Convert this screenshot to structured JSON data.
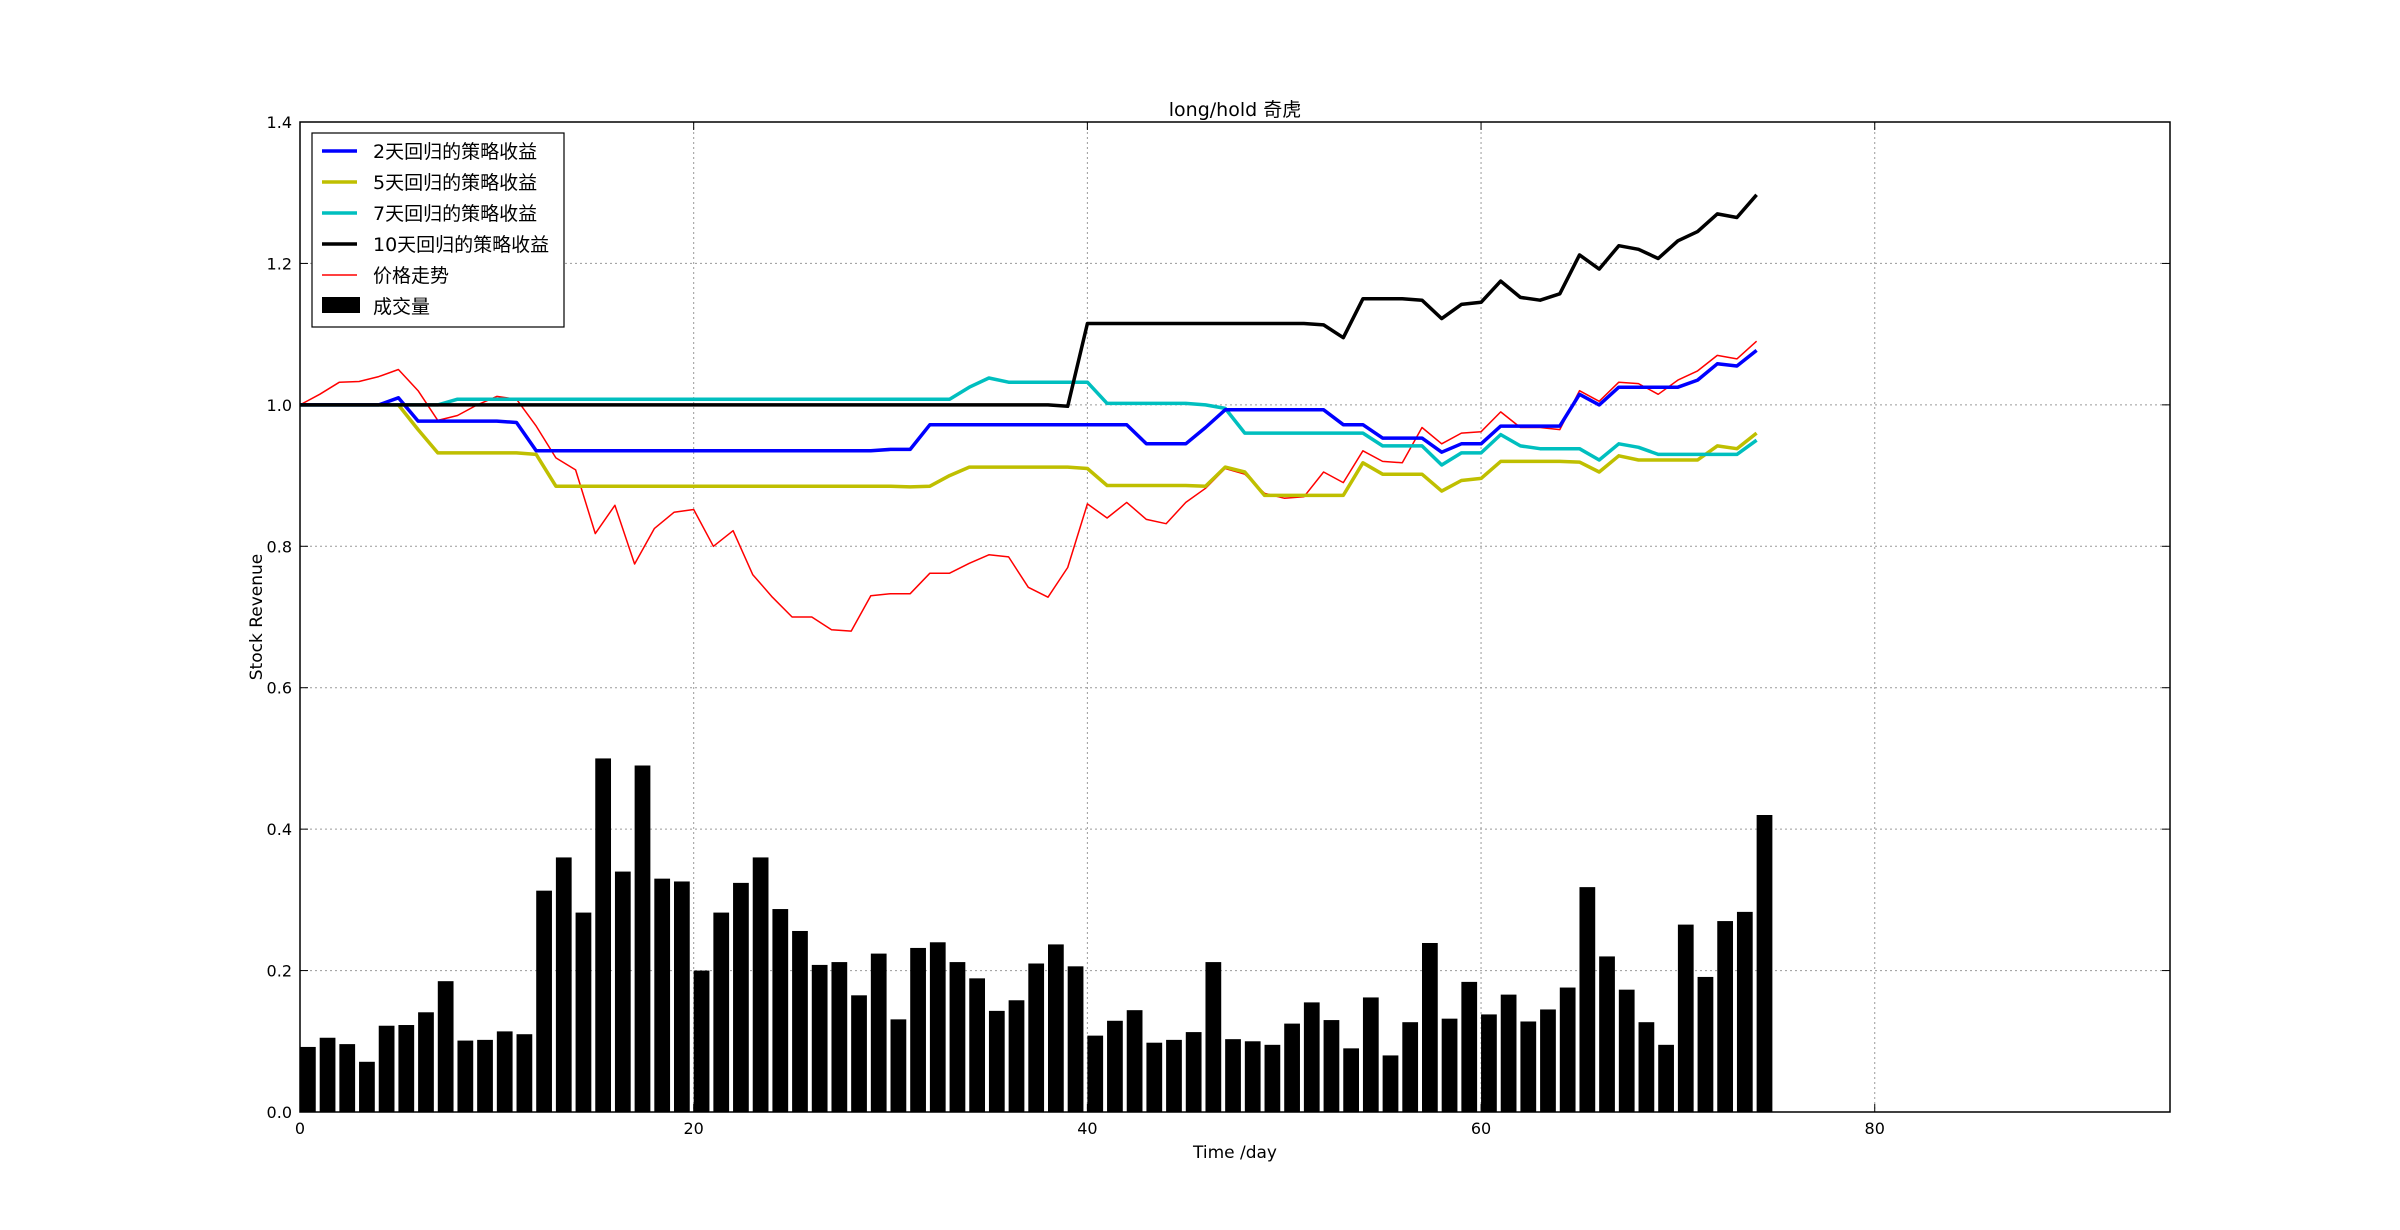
{
  "chart_data": {
    "type": "line",
    "title": "long/hold 奇虎",
    "xlabel": "Time /day",
    "ylabel": "Stock Revenue",
    "xlim": [
      0,
      95
    ],
    "ylim": [
      0,
      1.4
    ],
    "xticks": [
      0,
      20,
      40,
      60,
      80
    ],
    "yticks": [
      0.0,
      0.2,
      0.4,
      0.6,
      0.8,
      1.0,
      1.2,
      1.4
    ],
    "xtick_labels": [
      "0",
      "20",
      "40",
      "60",
      "80"
    ],
    "ytick_labels": [
      "0.0",
      "0.2",
      "0.4",
      "0.6",
      "0.8",
      "1.0",
      "1.2",
      "1.4"
    ],
    "grid": true,
    "legend_position": "top-left",
    "series": [
      {
        "name": "2天回归的策略收益",
        "color": "#0000ff",
        "kind": "line",
        "values": [
          1.0,
          1.0,
          1.0,
          1.0,
          1.0,
          1.01,
          0.977,
          0.977,
          0.977,
          0.977,
          0.977,
          0.975,
          0.935,
          0.935,
          0.935,
          0.935,
          0.935,
          0.935,
          0.935,
          0.935,
          0.935,
          0.935,
          0.935,
          0.935,
          0.935,
          0.935,
          0.935,
          0.935,
          0.935,
          0.935,
          0.937,
          0.937,
          0.972,
          0.972,
          0.972,
          0.972,
          0.972,
          0.972,
          0.972,
          0.972,
          0.972,
          0.972,
          0.972,
          0.945,
          0.945,
          0.945,
          0.968,
          0.993,
          0.993,
          0.993,
          0.993,
          0.993,
          0.993,
          0.972,
          0.972,
          0.953,
          0.953,
          0.953,
          0.933,
          0.945,
          0.945,
          0.97,
          0.97,
          0.97,
          0.97,
          1.015,
          1.0,
          1.025,
          1.025,
          1.025,
          1.025,
          1.035,
          1.058,
          1.055,
          1.077
        ]
      },
      {
        "name": "5天回归的策略收益",
        "color": "#bfbf00",
        "kind": "line",
        "values": [
          1.0,
          1.0,
          1.0,
          1.0,
          1.0,
          1.0,
          0.965,
          0.932,
          0.932,
          0.932,
          0.932,
          0.932,
          0.93,
          0.885,
          0.885,
          0.885,
          0.885,
          0.885,
          0.885,
          0.885,
          0.885,
          0.885,
          0.885,
          0.885,
          0.885,
          0.885,
          0.885,
          0.885,
          0.885,
          0.885,
          0.885,
          0.884,
          0.885,
          0.9,
          0.912,
          0.912,
          0.912,
          0.912,
          0.912,
          0.912,
          0.91,
          0.886,
          0.886,
          0.886,
          0.886,
          0.886,
          0.885,
          0.912,
          0.905,
          0.872,
          0.872,
          0.872,
          0.872,
          0.872,
          0.918,
          0.902,
          0.902,
          0.902,
          0.878,
          0.893,
          0.896,
          0.92,
          0.92,
          0.92,
          0.92,
          0.919,
          0.905,
          0.928,
          0.922,
          0.922,
          0.922,
          0.922,
          0.942,
          0.938,
          0.96
        ]
      },
      {
        "name": "7天回归的策略收益",
        "color": "#00bfbf",
        "kind": "line",
        "values": [
          1.0,
          1.0,
          1.0,
          1.0,
          1.0,
          1.0,
          1.0,
          1.0,
          1.008,
          1.008,
          1.008,
          1.008,
          1.008,
          1.008,
          1.008,
          1.008,
          1.008,
          1.008,
          1.008,
          1.008,
          1.008,
          1.008,
          1.008,
          1.008,
          1.008,
          1.008,
          1.008,
          1.008,
          1.008,
          1.008,
          1.008,
          1.008,
          1.008,
          1.008,
          1.025,
          1.038,
          1.032,
          1.032,
          1.032,
          1.032,
          1.032,
          1.002,
          1.002,
          1.002,
          1.002,
          1.002,
          1.0,
          0.995,
          0.96,
          0.96,
          0.96,
          0.96,
          0.96,
          0.96,
          0.96,
          0.942,
          0.942,
          0.942,
          0.915,
          0.932,
          0.932,
          0.958,
          0.942,
          0.938,
          0.938,
          0.938,
          0.922,
          0.945,
          0.94,
          0.93,
          0.93,
          0.93,
          0.93,
          0.93,
          0.95
        ]
      },
      {
        "name": "10天回归的策略收益",
        "color": "#000000",
        "kind": "line",
        "values": [
          1.0,
          1.0,
          1.0,
          1.0,
          1.0,
          1.0,
          1.0,
          1.0,
          1.0,
          1.0,
          1.0,
          1.0,
          1.0,
          1.0,
          1.0,
          1.0,
          1.0,
          1.0,
          1.0,
          1.0,
          1.0,
          1.0,
          1.0,
          1.0,
          1.0,
          1.0,
          1.0,
          1.0,
          1.0,
          1.0,
          1.0,
          1.0,
          1.0,
          1.0,
          1.0,
          1.0,
          1.0,
          1.0,
          1.0,
          0.998,
          1.115,
          1.115,
          1.115,
          1.115,
          1.115,
          1.115,
          1.115,
          1.115,
          1.115,
          1.115,
          1.115,
          1.115,
          1.113,
          1.095,
          1.15,
          1.15,
          1.15,
          1.148,
          1.122,
          1.142,
          1.145,
          1.175,
          1.152,
          1.148,
          1.157,
          1.212,
          1.192,
          1.225,
          1.22,
          1.207,
          1.232,
          1.245,
          1.27,
          1.265,
          1.297
        ]
      },
      {
        "name": "价格走势",
        "color": "#ff0000",
        "kind": "line-thin",
        "values": [
          1.0,
          1.015,
          1.032,
          1.033,
          1.04,
          1.05,
          1.02,
          0.978,
          0.985,
          1.0,
          1.012,
          1.008,
          0.97,
          0.925,
          0.908,
          0.818,
          0.858,
          0.775,
          0.825,
          0.848,
          0.852,
          0.8,
          0.822,
          0.76,
          0.728,
          0.7,
          0.7,
          0.682,
          0.68,
          0.73,
          0.733,
          0.733,
          0.762,
          0.762,
          0.776,
          0.788,
          0.785,
          0.742,
          0.728,
          0.77,
          0.86,
          0.84,
          0.862,
          0.838,
          0.832,
          0.862,
          0.882,
          0.91,
          0.902,
          0.875,
          0.868,
          0.87,
          0.905,
          0.89,
          0.935,
          0.92,
          0.918,
          0.968,
          0.945,
          0.96,
          0.962,
          0.99,
          0.968,
          0.968,
          0.965,
          1.02,
          1.005,
          1.032,
          1.03,
          1.015,
          1.035,
          1.048,
          1.07,
          1.065,
          1.09
        ]
      }
    ],
    "bars": {
      "name": "成交量",
      "color": "#000000",
      "values": [
        0.092,
        0.105,
        0.096,
        0.071,
        0.122,
        0.123,
        0.141,
        0.185,
        0.101,
        0.102,
        0.114,
        0.11,
        0.313,
        0.36,
        0.282,
        0.5,
        0.34,
        0.49,
        0.33,
        0.326,
        0.2,
        0.282,
        0.324,
        0.36,
        0.287,
        0.256,
        0.208,
        0.212,
        0.165,
        0.224,
        0.131,
        0.232,
        0.24,
        0.212,
        0.189,
        0.143,
        0.158,
        0.21,
        0.237,
        0.206,
        0.108,
        0.129,
        0.144,
        0.098,
        0.102,
        0.113,
        0.212,
        0.103,
        0.1,
        0.095,
        0.125,
        0.155,
        0.13,
        0.09,
        0.162,
        0.08,
        0.127,
        0.239,
        0.132,
        0.184,
        0.138,
        0.166,
        0.128,
        0.145,
        0.176,
        0.318,
        0.22,
        0.173,
        0.127,
        0.095,
        0.265,
        0.191,
        0.27,
        0.283,
        0.42
      ]
    }
  }
}
